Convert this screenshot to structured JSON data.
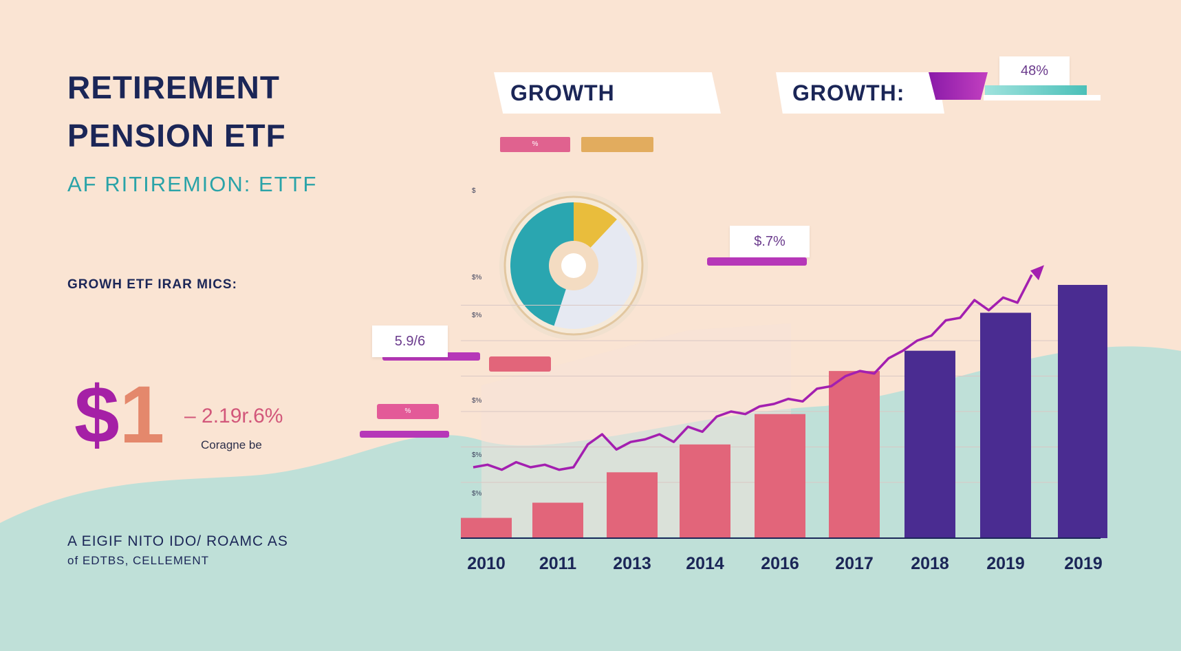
{
  "title_line1": "RETIREMENT",
  "title_line2": "PENSION ETF",
  "subtitle": "AF RITIREMION: ETTF",
  "metric_label": "GROWH ETF IRAR MICS:",
  "big_number_dollar": "$",
  "big_number_digit": "1",
  "change_text": "– 2.19r.6%",
  "compare_text": "Coragne be",
  "footer_line1": "A EIGIF NITO IDO/ ROAMC AS",
  "footer_line2": "of EDTBS, CELLEMENT",
  "growth_card_1": "GROWTH",
  "growth_card_2": "GROWTH:",
  "tag_top": "48%",
  "tag_mid": "$.7%",
  "tag_left": "5.9/6",
  "mini_label_1": "%",
  "mini_label_2": "%",
  "y_tick_labels": [
    "$",
    "$%",
    "$%",
    "$%",
    "$%",
    "$%"
  ],
  "colors": {
    "background": "#fae4d3",
    "hill": "#bfe0d8",
    "pink_bar": "#e2657a",
    "purple_bar": "#4a2c91",
    "line": "#a31fb0",
    "title": "#1b2657",
    "teal": "#2aa3a8"
  },
  "chart_data": [
    {
      "type": "bar",
      "title": "",
      "xlabel": "",
      "ylabel": "",
      "categories": [
        "2010",
        "2011",
        "2013",
        "2014",
        "2016",
        "2017",
        "2018",
        "2019",
        "2019"
      ],
      "values": [
        8,
        14,
        26,
        37,
        49,
        66,
        74,
        89,
        100
      ],
      "bar_colors": [
        "#e2657a",
        "#e2657a",
        "#e2657a",
        "#e2657a",
        "#e2657a",
        "#e2657a",
        "#4a2c91",
        "#4a2c91",
        "#4a2c91"
      ],
      "ylim": [
        0,
        100
      ],
      "grid": true
    },
    {
      "type": "line",
      "name": "growth trend",
      "x": [
        0,
        0.2,
        0.4,
        0.6,
        0.8,
        1.0,
        1.2,
        1.4,
        1.6,
        1.8,
        2.0,
        2.2,
        2.4,
        2.6,
        2.8,
        3.0,
        3.2,
        3.4,
        3.6,
        3.8,
        4.0,
        4.2,
        4.4,
        4.6,
        4.8,
        5.0,
        5.2,
        5.4,
        5.6,
        5.8,
        6.0,
        6.2,
        6.4,
        6.6,
        6.8,
        7.0,
        7.2,
        7.4,
        7.6,
        7.8
      ],
      "y": [
        28,
        29,
        27,
        30,
        28,
        29,
        27,
        28,
        37,
        41,
        35,
        38,
        39,
        41,
        38,
        44,
        42,
        48,
        50,
        49,
        52,
        53,
        55,
        54,
        59,
        60,
        64,
        66,
        65,
        71,
        74,
        78,
        80,
        86,
        87,
        94,
        90,
        95,
        93,
        104
      ],
      "ylim": [
        0,
        100
      ]
    },
    {
      "type": "pie",
      "labels": [
        "teal",
        "gold",
        "light"
      ],
      "values": [
        45,
        12,
        43
      ]
    }
  ]
}
